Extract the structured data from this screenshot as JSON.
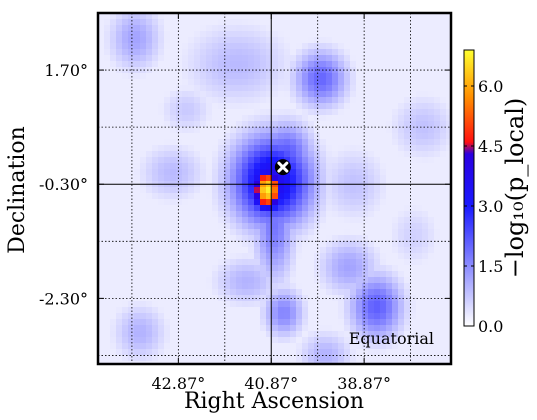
{
  "chart_data": {
    "type": "heatmap",
    "title": "",
    "xlabel": "Right Ascension",
    "ylabel": "Declination",
    "x_reversed": true,
    "xlim": [
      44.6,
      37.0
    ],
    "ylim": [
      -3.45,
      2.7
    ],
    "x_ticks": [
      42.87,
      40.87,
      38.87
    ],
    "x_tick_labels": [
      "42.87°",
      "40.87°",
      "38.87°"
    ],
    "y_ticks": [
      1.7,
      -0.3,
      -2.3
    ],
    "y_tick_labels": [
      "1.70°",
      "-0.30°",
      "-2.30°"
    ],
    "grid": true,
    "grid_style": "dotted",
    "crosshair": {
      "x": 40.87,
      "y": -0.3
    },
    "marker": {
      "x": 40.62,
      "y": 0.0,
      "symbol": "cross"
    },
    "annotation": "Equatorial",
    "annotation_position": "bottom-right",
    "colorbar": {
      "label": "−log₁₀(p_local)",
      "min": 0.0,
      "max": 6.9,
      "ticks": [
        0.0,
        1.5,
        3.0,
        4.5,
        6.0
      ],
      "tick_labels": [
        "0.0",
        "1.5",
        "3.0",
        "4.5",
        "6.0"
      ],
      "colormap": [
        {
          "v": 0.0,
          "color": "#ffffff"
        },
        {
          "v": 1.5,
          "color": "#8c8cff"
        },
        {
          "v": 3.0,
          "color": "#1a1aff"
        },
        {
          "v": 4.3,
          "color": "#2a00e0"
        },
        {
          "v": 4.6,
          "color": "#ff1010"
        },
        {
          "v": 5.7,
          "color": "#ff8c00"
        },
        {
          "v": 6.9,
          "color": "#ffff30"
        }
      ]
    },
    "background_value": 0.25,
    "hotspots": [
      {
        "ra": 40.95,
        "dec": -0.4,
        "peak": 6.8,
        "sigma_ra": 0.25,
        "sigma_dec": 0.28
      },
      {
        "ra": 40.85,
        "dec": -0.25,
        "peak": 3.8,
        "sigma_ra": 0.6,
        "sigma_dec": 0.55
      },
      {
        "ra": 40.55,
        "dec": 0.2,
        "peak": 2.2,
        "sigma_ra": 0.4,
        "sigma_dec": 0.4
      },
      {
        "ra": 40.8,
        "dec": -1.0,
        "peak": 1.8,
        "sigma_ra": 0.3,
        "sigma_dec": 0.7
      },
      {
        "ra": 39.8,
        "dec": 1.55,
        "peak": 2.0,
        "sigma_ra": 0.4,
        "sigma_dec": 0.35
      },
      {
        "ra": 38.6,
        "dec": -2.45,
        "peak": 2.1,
        "sigma_ra": 0.4,
        "sigma_dec": 0.4
      },
      {
        "ra": 39.2,
        "dec": -1.75,
        "peak": 1.2,
        "sigma_ra": 0.45,
        "sigma_dec": 0.35
      },
      {
        "ra": 40.6,
        "dec": -2.55,
        "peak": 1.6,
        "sigma_ra": 0.3,
        "sigma_dec": 0.3
      },
      {
        "ra": 43.8,
        "dec": 2.25,
        "peak": 1.2,
        "sigma_ra": 0.4,
        "sigma_dec": 0.4
      },
      {
        "ra": 41.6,
        "dec": 1.8,
        "peak": 0.9,
        "sigma_ra": 0.8,
        "sigma_dec": 0.5
      },
      {
        "ra": 43.0,
        "dec": -0.1,
        "peak": 0.9,
        "sigma_ra": 0.5,
        "sigma_dec": 0.35
      },
      {
        "ra": 41.4,
        "dec": -2.0,
        "peak": 1.0,
        "sigma_ra": 0.5,
        "sigma_dec": 0.3
      },
      {
        "ra": 37.6,
        "dec": 0.7,
        "peak": 0.8,
        "sigma_ra": 0.5,
        "sigma_dec": 0.4
      },
      {
        "ra": 43.7,
        "dec": -2.9,
        "peak": 1.0,
        "sigma_ra": 0.4,
        "sigma_dec": 0.35
      },
      {
        "ra": 39.1,
        "dec": -0.3,
        "peak": 0.8,
        "sigma_ra": 0.5,
        "sigma_dec": 0.45
      },
      {
        "ra": 39.7,
        "dec": -3.3,
        "peak": 1.0,
        "sigma_ra": 0.4,
        "sigma_dec": 0.3
      },
      {
        "ra": 42.7,
        "dec": 1.0,
        "peak": 0.7,
        "sigma_ra": 0.4,
        "sigma_dec": 0.3
      },
      {
        "ra": 37.8,
        "dec": -1.2,
        "peak": 0.6,
        "sigma_ra": 0.4,
        "sigma_dec": 0.4
      }
    ]
  }
}
